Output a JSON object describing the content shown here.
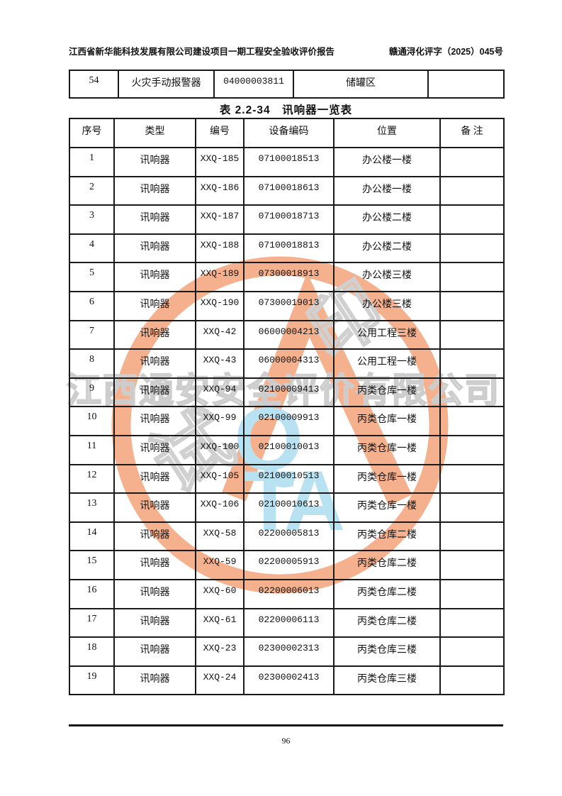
{
  "header": {
    "left": "江西省新华能科技发展有限公司建设项目一期工程安全验收评价报告",
    "right": "赣通浔化评字（2025）045号"
  },
  "carryover_table": {
    "cells": [
      "54",
      "火灾手动报警器",
      "04000003811",
      "储罐区",
      ""
    ]
  },
  "table": {
    "title": "表 2.2-34　讯响器一览表",
    "columns": [
      "序号",
      "类型",
      "编号",
      "设备编码",
      "位置",
      "备 注"
    ],
    "rows": [
      [
        "1",
        "讯响器",
        "XXQ-185",
        "07100018513",
        "办公楼一楼",
        ""
      ],
      [
        "2",
        "讯响器",
        "XXQ-186",
        "07100018613",
        "办公楼一楼",
        ""
      ],
      [
        "3",
        "讯响器",
        "XXQ-187",
        "07100018713",
        "办公楼二楼",
        ""
      ],
      [
        "4",
        "讯响器",
        "XXQ-188",
        "07100018813",
        "办公楼二楼",
        ""
      ],
      [
        "5",
        "讯响器",
        "XXQ-189",
        "07300018913",
        "办公楼三楼",
        ""
      ],
      [
        "6",
        "讯响器",
        "XXQ-190",
        "07300019013",
        "办公楼三楼",
        ""
      ],
      [
        "7",
        "讯响器",
        "XXQ-42",
        "06000004213",
        "公用工程三楼",
        ""
      ],
      [
        "8",
        "讯响器",
        "XXQ-43",
        "06000004313",
        "公用工程一楼",
        ""
      ],
      [
        "9",
        "讯响器",
        "XXQ-94",
        "02100009413",
        "丙类仓库一楼",
        ""
      ],
      [
        "10",
        "讯响器",
        "XXQ-99",
        "02100009913",
        "丙类仓库一楼",
        ""
      ],
      [
        "11",
        "讯响器",
        "XXQ-100",
        "02100010013",
        "丙类仓库一楼",
        ""
      ],
      [
        "12",
        "讯响器",
        "XXQ-105",
        "02100010513",
        "丙类仓库一楼",
        ""
      ],
      [
        "13",
        "讯响器",
        "XXQ-106",
        "02100010613",
        "丙类仓库一楼",
        ""
      ],
      [
        "14",
        "讯响器",
        "XXQ-58",
        "02200005813",
        "丙类仓库二楼",
        ""
      ],
      [
        "15",
        "讯响器",
        "XXQ-59",
        "02200005913",
        "丙类仓库二楼",
        ""
      ],
      [
        "16",
        "讯响器",
        "XXQ-60",
        "02200006013",
        "丙类仓库二楼",
        ""
      ],
      [
        "17",
        "讯响器",
        "XXQ-61",
        "02200006113",
        "丙类仓库二楼",
        ""
      ],
      [
        "18",
        "讯响器",
        "XXQ-23",
        "02300002313",
        "丙类仓库三楼",
        ""
      ],
      [
        "19",
        "讯响器",
        "XXQ-24",
        "02300002413",
        "丙类仓库三楼",
        ""
      ]
    ]
  },
  "watermark": {
    "company_text": "江西通安安全评价有限公司",
    "trial_char_1": "试",
    "trial_char_2": "印",
    "logo_q": "Q",
    "logo_ta": "TA",
    "orange_color": "#F3A076",
    "blue_color": "#A9DBEF",
    "gray_color": "#C3C3C3"
  },
  "footer": {
    "page_number": "96"
  }
}
